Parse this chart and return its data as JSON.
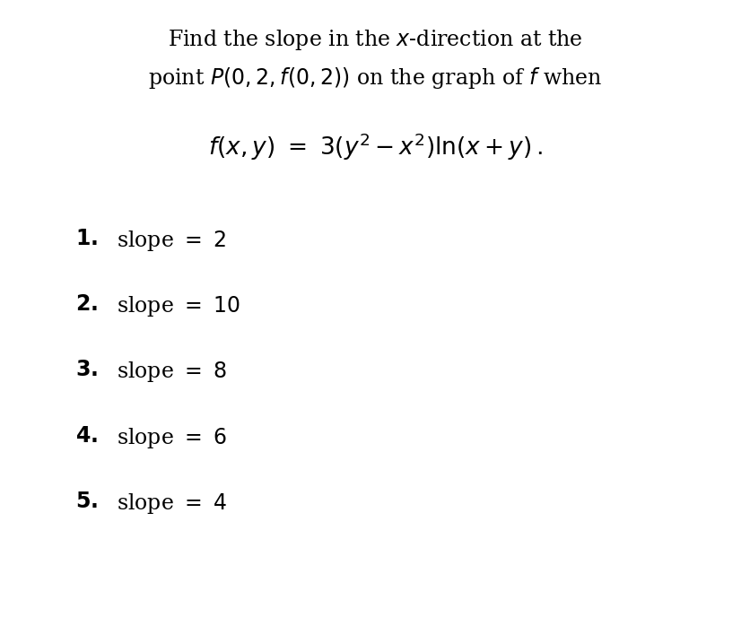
{
  "bg_color": "#ffffff",
  "title_line1": "Find the slope in the $x$-direction at the",
  "title_line2": "point $P(0, 2, f(0, 2))$ on the graph of $f$ when",
  "formula": "$f(x, y) \\ = \\ 3(y^2 - x^2)\\ln(x + y)\\,.$",
  "options": [
    {
      "num": "\\textbf{1.}",
      "text": "slope $= 2$"
    },
    {
      "num": "\\textbf{2.}",
      "text": "slope $= 10$"
    },
    {
      "num": "\\textbf{3.}",
      "text": "slope $= 8$"
    },
    {
      "num": "\\textbf{4.}",
      "text": "slope $= 6$"
    },
    {
      "num": "\\textbf{5.}",
      "text": "slope $= 4$"
    }
  ],
  "text_color": "#000000",
  "title_fontsize": 17,
  "formula_fontsize": 19,
  "option_fontsize": 17,
  "option_num_fontsize": 17
}
